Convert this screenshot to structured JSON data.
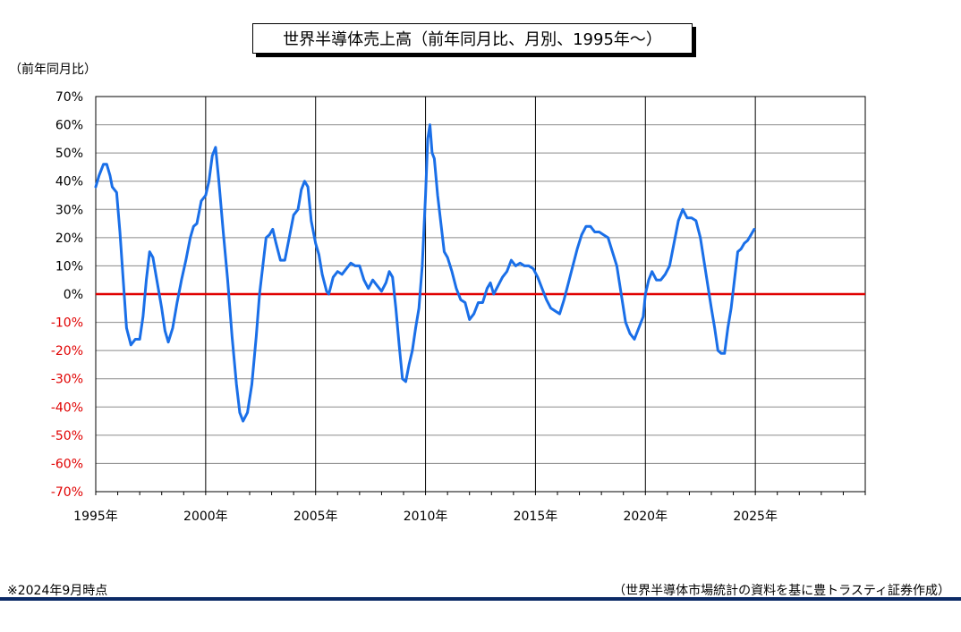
{
  "chart_data": {
    "type": "line",
    "title": "世界半導体売上高（前年同月比、月別、1995年～）",
    "ylabel": "（前年同月比）",
    "xlabel": "",
    "x_ticks": [
      "1995年",
      "2000年",
      "2005年",
      "2010年",
      "2015年",
      "2020年",
      "2025年"
    ],
    "x_range": [
      1995,
      2030
    ],
    "ylim": [
      -70,
      70
    ],
    "y_ticks": [
      {
        "value": 70,
        "label": "70%"
      },
      {
        "value": 60,
        "label": "60%"
      },
      {
        "value": 50,
        "label": "50%"
      },
      {
        "value": 40,
        "label": "40%"
      },
      {
        "value": 30,
        "label": "30%"
      },
      {
        "value": 20,
        "label": "20%"
      },
      {
        "value": 10,
        "label": "10%"
      },
      {
        "value": 0,
        "label": "0%"
      },
      {
        "value": -10,
        "label": "-10%"
      },
      {
        "value": -20,
        "label": "-20%"
      },
      {
        "value": -30,
        "label": "-30%"
      },
      {
        "value": -40,
        "label": "-40%"
      },
      {
        "value": -50,
        "label": "-50%"
      },
      {
        "value": -60,
        "label": "-60%"
      },
      {
        "value": -70,
        "label": "-70%"
      }
    ],
    "grid": true,
    "colors": {
      "series": "#1a6fe8",
      "zero_line": "#e00000",
      "negative_tick": "#e00000",
      "positive_tick": "#000000"
    },
    "series": [
      {
        "name": "",
        "points": [
          [
            1995.0,
            38
          ],
          [
            1995.15,
            42
          ],
          [
            1995.35,
            46
          ],
          [
            1995.5,
            46
          ],
          [
            1995.65,
            42
          ],
          [
            1995.75,
            38
          ],
          [
            1995.95,
            36
          ],
          [
            1996.1,
            22
          ],
          [
            1996.25,
            5
          ],
          [
            1996.4,
            -12
          ],
          [
            1996.6,
            -18
          ],
          [
            1996.8,
            -16
          ],
          [
            1997.0,
            -16
          ],
          [
            1997.15,
            -8
          ],
          [
            1997.3,
            5
          ],
          [
            1997.45,
            15
          ],
          [
            1997.6,
            13
          ],
          [
            1997.8,
            4
          ],
          [
            1998.0,
            -5
          ],
          [
            1998.15,
            -13
          ],
          [
            1998.3,
            -17
          ],
          [
            1998.5,
            -12
          ],
          [
            1998.7,
            -3
          ],
          [
            1998.9,
            5
          ],
          [
            1999.1,
            12
          ],
          [
            1999.3,
            20
          ],
          [
            1999.45,
            24
          ],
          [
            1999.6,
            25
          ],
          [
            1999.8,
            33
          ],
          [
            2000.0,
            35
          ],
          [
            2000.15,
            40
          ],
          [
            2000.3,
            49
          ],
          [
            2000.45,
            52
          ],
          [
            2000.6,
            40
          ],
          [
            2000.8,
            22
          ],
          [
            2001.0,
            5
          ],
          [
            2001.2,
            -15
          ],
          [
            2001.4,
            -32
          ],
          [
            2001.55,
            -42
          ],
          [
            2001.7,
            -45
          ],
          [
            2001.9,
            -42
          ],
          [
            2002.1,
            -32
          ],
          [
            2002.3,
            -15
          ],
          [
            2002.45,
            0
          ],
          [
            2002.6,
            10
          ],
          [
            2002.75,
            20
          ],
          [
            2002.9,
            21
          ],
          [
            2003.05,
            23
          ],
          [
            2003.2,
            18
          ],
          [
            2003.4,
            12
          ],
          [
            2003.6,
            12
          ],
          [
            2003.8,
            20
          ],
          [
            2004.0,
            28
          ],
          [
            2004.2,
            30
          ],
          [
            2004.35,
            37
          ],
          [
            2004.5,
            40
          ],
          [
            2004.65,
            38
          ],
          [
            2004.8,
            26
          ],
          [
            2005.0,
            18
          ],
          [
            2005.15,
            14
          ],
          [
            2005.3,
            7
          ],
          [
            2005.5,
            1
          ],
          [
            2005.6,
            0
          ],
          [
            2005.8,
            6
          ],
          [
            2006.0,
            8
          ],
          [
            2006.2,
            7
          ],
          [
            2006.4,
            9
          ],
          [
            2006.6,
            11
          ],
          [
            2006.8,
            10
          ],
          [
            2007.0,
            10
          ],
          [
            2007.2,
            5
          ],
          [
            2007.4,
            2
          ],
          [
            2007.6,
            5
          ],
          [
            2007.8,
            3
          ],
          [
            2008.0,
            1
          ],
          [
            2008.2,
            4
          ],
          [
            2008.35,
            8
          ],
          [
            2008.5,
            6
          ],
          [
            2008.65,
            -5
          ],
          [
            2008.8,
            -18
          ],
          [
            2008.95,
            -30
          ],
          [
            2009.1,
            -31
          ],
          [
            2009.25,
            -25
          ],
          [
            2009.4,
            -20
          ],
          [
            2009.55,
            -12
          ],
          [
            2009.7,
            -5
          ],
          [
            2009.85,
            10
          ],
          [
            2010.0,
            35
          ],
          [
            2010.1,
            55
          ],
          [
            2010.2,
            60
          ],
          [
            2010.3,
            50
          ],
          [
            2010.4,
            48
          ],
          [
            2010.55,
            35
          ],
          [
            2010.7,
            25
          ],
          [
            2010.85,
            15
          ],
          [
            2011.0,
            13
          ],
          [
            2011.2,
            8
          ],
          [
            2011.4,
            2
          ],
          [
            2011.6,
            -2
          ],
          [
            2011.8,
            -3
          ],
          [
            2012.0,
            -9
          ],
          [
            2012.2,
            -7
          ],
          [
            2012.4,
            -3
          ],
          [
            2012.6,
            -3
          ],
          [
            2012.8,
            2
          ],
          [
            2012.95,
            4
          ],
          [
            2013.1,
            0
          ],
          [
            2013.3,
            3
          ],
          [
            2013.5,
            6
          ],
          [
            2013.7,
            8
          ],
          [
            2013.9,
            12
          ],
          [
            2014.1,
            10
          ],
          [
            2014.3,
            11
          ],
          [
            2014.5,
            10
          ],
          [
            2014.7,
            10
          ],
          [
            2014.9,
            9
          ],
          [
            2015.1,
            6
          ],
          [
            2015.3,
            2
          ],
          [
            2015.5,
            -2
          ],
          [
            2015.7,
            -5
          ],
          [
            2015.9,
            -6
          ],
          [
            2016.1,
            -7
          ],
          [
            2016.3,
            -2
          ],
          [
            2016.5,
            4
          ],
          [
            2016.7,
            10
          ],
          [
            2016.9,
            16
          ],
          [
            2017.1,
            21
          ],
          [
            2017.3,
            24
          ],
          [
            2017.5,
            24
          ],
          [
            2017.7,
            22
          ],
          [
            2017.9,
            22
          ],
          [
            2018.1,
            21
          ],
          [
            2018.3,
            20
          ],
          [
            2018.5,
            15
          ],
          [
            2018.7,
            10
          ],
          [
            2018.9,
            0
          ],
          [
            2019.1,
            -10
          ],
          [
            2019.3,
            -14
          ],
          [
            2019.5,
            -16
          ],
          [
            2019.7,
            -12
          ],
          [
            2019.9,
            -8
          ],
          [
            2020.0,
            0
          ],
          [
            2020.15,
            5
          ],
          [
            2020.3,
            8
          ],
          [
            2020.5,
            5
          ],
          [
            2020.7,
            5
          ],
          [
            2020.9,
            7
          ],
          [
            2021.1,
            10
          ],
          [
            2021.3,
            18
          ],
          [
            2021.5,
            26
          ],
          [
            2021.7,
            30
          ],
          [
            2021.9,
            27
          ],
          [
            2022.1,
            27
          ],
          [
            2022.3,
            26
          ],
          [
            2022.5,
            20
          ],
          [
            2022.7,
            10
          ],
          [
            2022.9,
            0
          ],
          [
            2023.0,
            -5
          ],
          [
            2023.15,
            -12
          ],
          [
            2023.3,
            -20
          ],
          [
            2023.45,
            -21
          ],
          [
            2023.6,
            -21
          ],
          [
            2023.75,
            -12
          ],
          [
            2023.9,
            -5
          ],
          [
            2024.05,
            5
          ],
          [
            2024.2,
            15
          ],
          [
            2024.35,
            16
          ],
          [
            2024.5,
            18
          ],
          [
            2024.65,
            19
          ],
          [
            2024.8,
            21
          ],
          [
            2024.95,
            23
          ]
        ]
      }
    ]
  },
  "footnote_left": "※2024年9月時点",
  "footnote_right": "（世界半導体市場統計の資料を基に豊トラスティ証券作成）"
}
